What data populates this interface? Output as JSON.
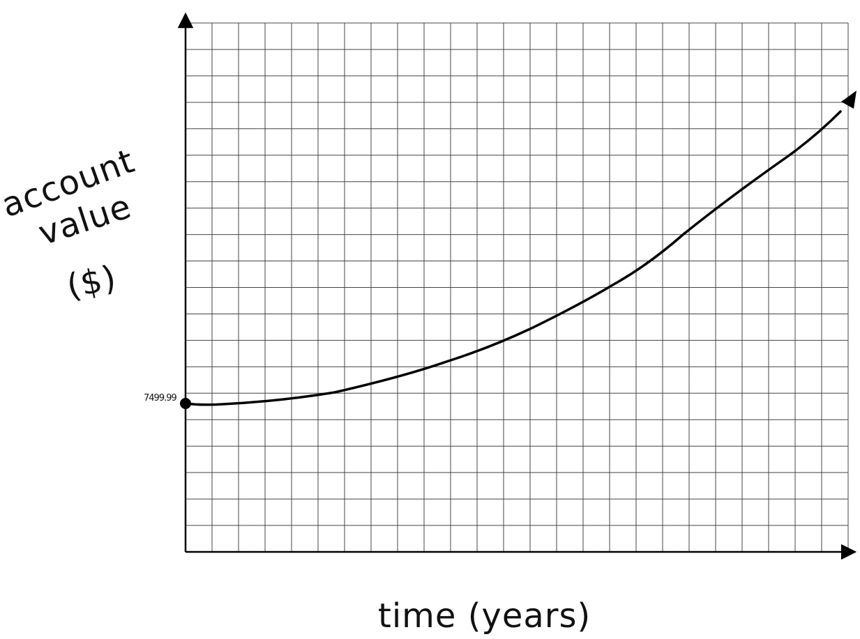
{
  "chart_data": {
    "type": "line",
    "title": "",
    "xlabel": "time (years)",
    "ylabel_lines": [
      "account",
      "value",
      "($)"
    ],
    "start_label": "7499.99",
    "grid": true,
    "x_ticks_labeled": false,
    "y_ticks_labeled": false,
    "series": [
      {
        "start_point": {
          "x": 0,
          "y": 7499.99,
          "marker": "filled-dot"
        },
        "shape": "increasing, concave up",
        "arrow_at_end": true,
        "color": "#000000"
      }
    ]
  }
}
